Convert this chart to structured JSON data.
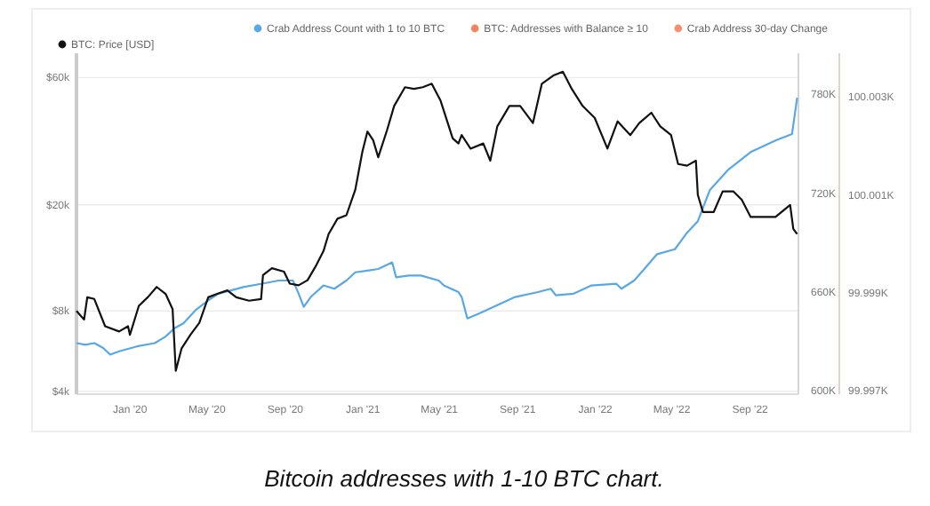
{
  "chart_data": {
    "type": "line",
    "legend": "top left",
    "grid": "y",
    "log": true,
    "xlim": [
      "2019-10-09",
      "2022-11-16"
    ],
    "xticks": [
      {
        "value": "2020-01-01",
        "label": "Jan '20"
      },
      {
        "value": "2020-05-01",
        "label": "May '20"
      },
      {
        "value": "2020-09-01",
        "label": "Sep '20"
      },
      {
        "value": "2021-01-01",
        "label": "Jan '21"
      },
      {
        "value": "2021-05-01",
        "label": "May '21"
      },
      {
        "value": "2021-09-01",
        "label": "Sep '21"
      },
      {
        "value": "2022-01-01",
        "label": "Jan '22"
      },
      {
        "value": "2022-05-01",
        "label": "May '22"
      },
      {
        "value": "2022-09-01",
        "label": "Sep '22"
      }
    ],
    "ylim": [
      3900,
      74000
    ],
    "yticks": [
      {
        "value": 4000,
        "label": "$4k"
      },
      {
        "value": 8000,
        "label": "$8k"
      },
      {
        "value": 20000,
        "label": "$20k"
      },
      {
        "value": 60000,
        "label": "$60k"
      }
    ],
    "y2lim": [
      598000,
      805000
    ],
    "y2ticks": [
      {
        "value": 600000,
        "label": "600K"
      },
      {
        "value": 660000,
        "label": "660K"
      },
      {
        "value": 720000,
        "label": "720K"
      },
      {
        "value": 780000,
        "label": "780K"
      }
    ],
    "y3lim": [
      99996.93,
      100003.9
    ],
    "y3ticks": [
      {
        "value": 99997,
        "label": "99.997K"
      },
      {
        "value": 99999,
        "label": "99.999K"
      },
      {
        "value": 100001,
        "label": "100.001K"
      },
      {
        "value": 100003,
        "label": "100.003K"
      }
    ],
    "annotations": [
      "Bitcoin addresses with 1-10 BTC chart."
    ],
    "series": [
      {
        "name": "Crab Address Count with 1 to 10 BTC",
        "color": "#5aa7e6",
        "axis": "y2",
        "x": [
          "2019-10-09",
          "2019-10-23",
          "2019-11-06",
          "2019-11-20",
          "2019-12-01",
          "2019-12-15",
          "2020-01-12",
          "2020-02-09",
          "2020-02-26",
          "2020-03-11",
          "2020-03-25",
          "2020-04-13",
          "2020-05-03",
          "2020-05-19",
          "2020-06-08",
          "2020-06-27",
          "2020-07-25",
          "2020-08-22",
          "2020-09-13",
          "2020-09-22",
          "2020-09-30",
          "2020-10-11",
          "2020-10-31",
          "2020-11-17",
          "2020-12-06",
          "2020-12-20",
          "2021-01-08",
          "2021-01-25",
          "2021-02-16",
          "2021-02-22",
          "2021-03-14",
          "2021-04-02",
          "2021-04-30",
          "2021-05-08",
          "2021-05-31",
          "2021-06-05",
          "2021-06-14",
          "2021-07-03",
          "2021-07-31",
          "2021-08-28",
          "2021-10-03",
          "2021-10-23",
          "2021-10-31",
          "2021-11-28",
          "2021-12-26",
          "2022-02-03",
          "2022-02-11",
          "2022-03-03",
          "2022-03-19",
          "2022-04-08",
          "2022-05-06",
          "2022-05-25",
          "2022-06-11",
          "2022-06-30",
          "2022-07-28",
          "2022-09-02",
          "2022-10-11",
          "2022-11-06",
          "2022-11-14"
        ],
        "values": [
          629000,
          628000,
          629000,
          626000,
          622000,
          624000,
          627000,
          629000,
          633000,
          638000,
          641000,
          649000,
          655000,
          659000,
          661000,
          663000,
          665000,
          667000,
          667000,
          659000,
          651000,
          657000,
          664000,
          662000,
          667000,
          672000,
          673000,
          674000,
          678000,
          669000,
          670000,
          670000,
          667000,
          664000,
          660000,
          657000,
          644000,
          647000,
          652000,
          657000,
          660000,
          662000,
          658000,
          659000,
          664000,
          665000,
          662000,
          667000,
          674000,
          683000,
          686000,
          696000,
          703000,
          722000,
          734000,
          745000,
          752000,
          756000,
          778000
        ]
      },
      {
        "name": "BTC: Addresses with Balance ≥ 10",
        "color": "#f4845f",
        "axis": "y2"
      },
      {
        "name": "Crab Address 30-day Change",
        "color": "#f7906f",
        "axis": "y3"
      },
      {
        "name": "BTC: Price [USD]",
        "color": "#111111",
        "x": [
          "2019-10-09",
          "2019-10-21",
          "2019-10-26",
          "2019-11-06",
          "2019-11-23",
          "2019-12-15",
          "2019-12-29",
          "2020-01-01",
          "2020-01-15",
          "2020-01-29",
          "2020-02-12",
          "2020-02-26",
          "2020-03-08",
          "2020-03-13",
          "2020-03-22",
          "2020-04-05",
          "2020-04-19",
          "2020-05-03",
          "2020-05-17",
          "2020-06-02",
          "2020-06-16",
          "2020-07-06",
          "2020-07-25",
          "2020-07-28",
          "2020-08-11",
          "2020-08-30",
          "2020-09-08",
          "2020-09-22",
          "2020-10-06",
          "2020-10-20",
          "2020-10-31",
          "2020-11-08",
          "2020-11-22",
          "2020-12-06",
          "2020-12-20",
          "2020-12-31",
          "2021-01-08",
          "2021-01-17",
          "2021-01-25",
          "2021-02-08",
          "2021-02-19",
          "2021-03-08",
          "2021-03-22",
          "2021-04-05",
          "2021-04-19",
          "2021-05-03",
          "2021-05-22",
          "2021-05-31",
          "2021-06-05",
          "2021-06-19",
          "2021-07-09",
          "2021-07-20",
          "2021-07-31",
          "2021-08-19",
          "2021-09-05",
          "2021-09-25",
          "2021-10-09",
          "2021-10-28",
          "2021-11-11",
          "2021-11-25",
          "2021-12-12",
          "2021-12-31",
          "2022-01-20",
          "2022-02-05",
          "2022-02-25",
          "2022-03-11",
          "2022-03-30",
          "2022-04-13",
          "2022-04-30",
          "2022-05-11",
          "2022-05-25",
          "2022-06-08",
          "2022-06-11",
          "2022-06-19",
          "2022-07-06",
          "2022-07-20",
          "2022-08-06",
          "2022-08-19",
          "2022-09-02",
          "2022-09-22",
          "2022-10-11",
          "2022-11-03",
          "2022-11-08",
          "2022-11-14"
        ],
        "values": [
          8000,
          7430,
          9000,
          8870,
          7010,
          6700,
          7010,
          6510,
          8360,
          9000,
          9840,
          9270,
          8120,
          4770,
          5780,
          6510,
          7220,
          9000,
          9270,
          9550,
          9000,
          8740,
          8870,
          10900,
          11570,
          11230,
          10130,
          9980,
          10430,
          11910,
          13410,
          15530,
          17740,
          18270,
          22800,
          31540,
          37640,
          34960,
          30160,
          38200,
          46960,
          55200,
          54400,
          55200,
          56880,
          49080,
          35480,
          33960,
          36520,
          32480,
          33960,
          29280,
          39360,
          46960,
          46960,
          40520,
          56880,
          61240,
          63080,
          54400,
          46960,
          42360,
          32480,
          41120,
          36520,
          40520,
          44280,
          39360,
          36520,
          28440,
          28040,
          29280,
          21800,
          18800,
          18800,
          22440,
          22440,
          20880,
          18000,
          18000,
          18000,
          19960,
          16240,
          15530
        ]
      }
    ]
  }
}
